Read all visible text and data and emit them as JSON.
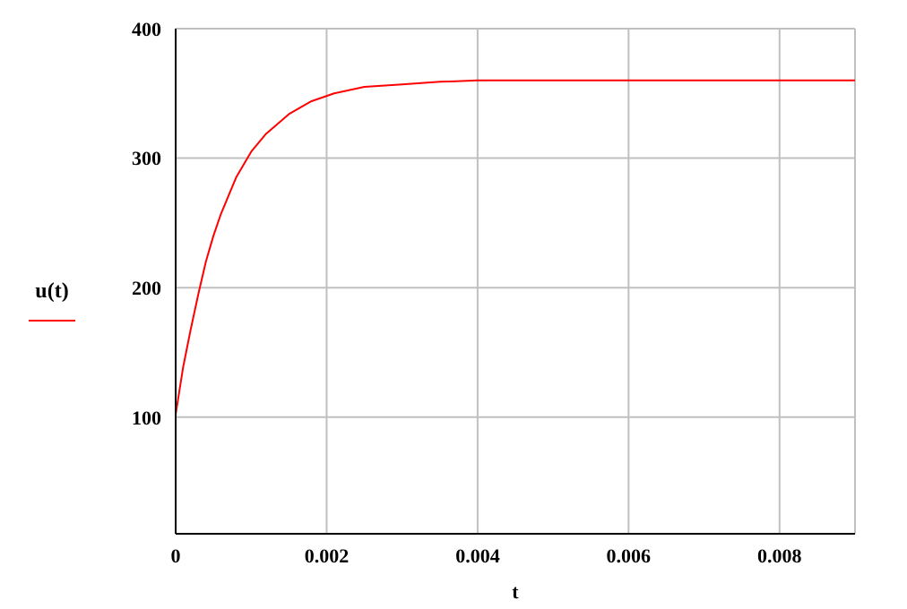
{
  "chart_data": {
    "type": "line",
    "xlabel": "t",
    "x": [
      0,
      0.0001,
      0.0002,
      0.0003,
      0.0004,
      0.0005,
      0.0006,
      0.0008,
      0.001,
      0.0012,
      0.0015,
      0.0018,
      0.0021,
      0.0025,
      0.003,
      0.0035,
      0.004,
      0.005,
      0.006,
      0.007,
      0.008,
      0.009
    ],
    "series": [
      {
        "name": "u(t)",
        "color": "#ff0000",
        "values": [
          102,
          139,
          168,
          195,
          220,
          240,
          257,
          285,
          305,
          319,
          334,
          344,
          350,
          355,
          357,
          359,
          360,
          360,
          360,
          360,
          360,
          360
        ]
      }
    ],
    "xlim": [
      0,
      0.009
    ],
    "xticks": [
      0,
      0.002,
      0.004,
      0.006,
      0.008
    ],
    "ylim": [
      10,
      400
    ],
    "yticks": [
      100,
      200,
      300,
      400
    ],
    "grid": true,
    "legend": "left",
    "marker": "none",
    "line_style": "solid"
  }
}
